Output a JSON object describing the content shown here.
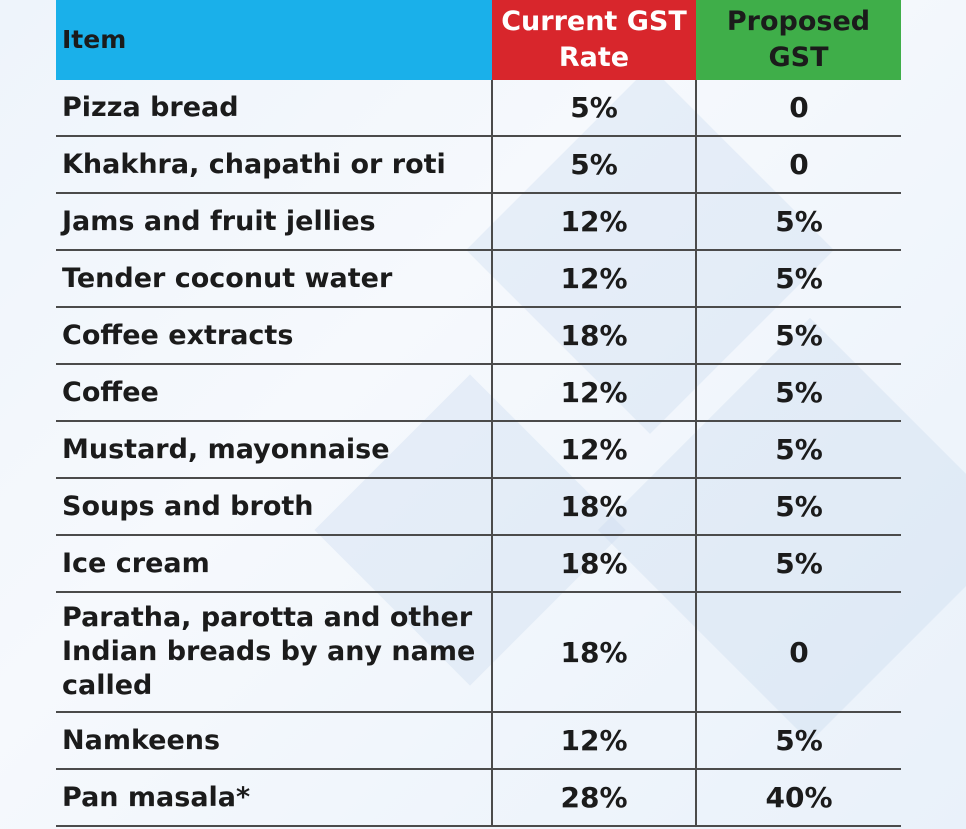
{
  "table": {
    "headers": {
      "item": "Item",
      "current": "Current GST Rate",
      "proposed": "Proposed GST"
    },
    "rows": [
      {
        "item": "Pizza bread",
        "current": "5%",
        "proposed": "0"
      },
      {
        "item": "Khakhra, chapathi or roti",
        "current": "5%",
        "proposed": "0"
      },
      {
        "item": "Jams and fruit jellies",
        "current": "12%",
        "proposed": "5%"
      },
      {
        "item": "Tender coconut water",
        "current": "12%",
        "proposed": "5%"
      },
      {
        "item": "Coffee extracts",
        "current": "18%",
        "proposed": "5%"
      },
      {
        "item": "Coffee",
        "current": "12%",
        "proposed": "5%"
      },
      {
        "item": "Mustard, mayonnaise",
        "current": "12%",
        "proposed": "5%"
      },
      {
        "item": "Soups and broth",
        "current": "18%",
        "proposed": "5%"
      },
      {
        "item": "Ice cream",
        "current": "18%",
        "proposed": "5%"
      },
      {
        "item": "Paratha, parotta and other Indian breads by any name called",
        "current": "18%",
        "proposed": "0"
      },
      {
        "item": "Namkeens",
        "current": "12%",
        "proposed": "5%"
      },
      {
        "item": "Pan masala*",
        "current": "28%",
        "proposed": "40%"
      }
    ]
  },
  "colors": {
    "item_header": "#1ab0ea",
    "current_header": "#d8262c",
    "proposed_header": "#3fae49"
  }
}
